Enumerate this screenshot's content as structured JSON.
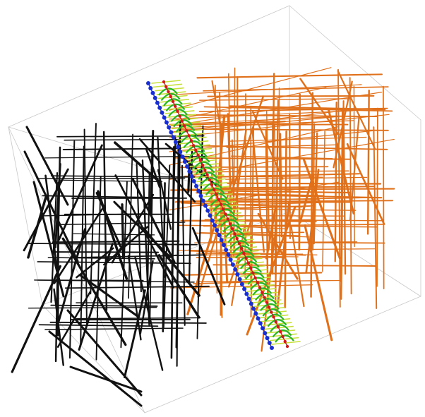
{
  "figure": {
    "kind": "3d-graph-embedding",
    "background_color": "#ffffff",
    "bounding_box_color": "#c8c8c8",
    "groups": [
      {
        "id": "left",
        "edge_color": "#111111"
      },
      {
        "id": "right",
        "edge_color": "#e0701a"
      },
      {
        "id": "middle",
        "edge_color": "#c8e03a"
      }
    ],
    "node_colors": {
      "primary": "#1a2fd0",
      "secondary": "#d01a1a"
    },
    "accent_color": "#28b428"
  }
}
